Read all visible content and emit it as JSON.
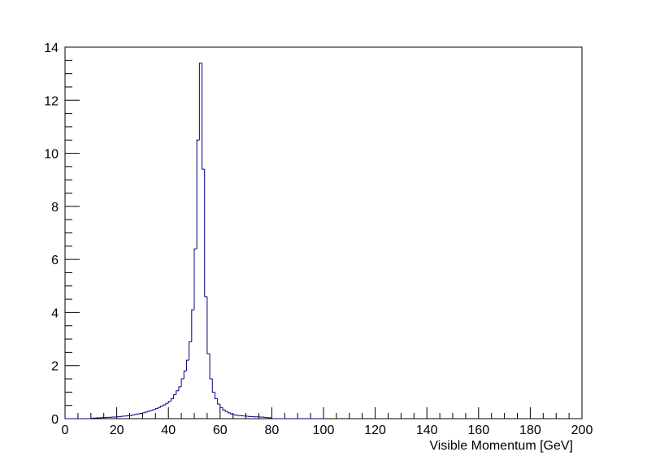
{
  "chart_data": {
    "type": "histogram",
    "xlabel": "Visible Momentum [GeV]",
    "bins": [
      0,
      1,
      2,
      3,
      4,
      5,
      6,
      7,
      8,
      9,
      10,
      11,
      12,
      13,
      14,
      15,
      16,
      17,
      18,
      19,
      20,
      21,
      22,
      23,
      24,
      25,
      26,
      27,
      28,
      29,
      30,
      31,
      32,
      33,
      34,
      35,
      36,
      37,
      38,
      39,
      40,
      41,
      42,
      43,
      44,
      45,
      46,
      47,
      48,
      49,
      50,
      51,
      52,
      53,
      54,
      55,
      56,
      57,
      58,
      59,
      60,
      61,
      62,
      63,
      64,
      65,
      66,
      67,
      68,
      69,
      70,
      71,
      72,
      73,
      74,
      75,
      76,
      77,
      78,
      79,
      80,
      81,
      82,
      83,
      84,
      85,
      86,
      87,
      88,
      89,
      90,
      91,
      92,
      93,
      94,
      95,
      96,
      97,
      98,
      99,
      100
    ],
    "counts": [
      0,
      0,
      0,
      0,
      0,
      0,
      0,
      0,
      0,
      0,
      0.02,
      0.02,
      0.03,
      0.03,
      0.04,
      0.04,
      0.05,
      0.05,
      0.06,
      0.06,
      0.07,
      0.08,
      0.09,
      0.1,
      0.11,
      0.12,
      0.14,
      0.16,
      0.18,
      0.2,
      0.22,
      0.25,
      0.28,
      0.31,
      0.34,
      0.38,
      0.42,
      0.47,
      0.52,
      0.58,
      0.65,
      0.75,
      0.9,
      1.05,
      1.2,
      1.5,
      1.8,
      2.2,
      2.9,
      4.1,
      6.4,
      10.5,
      13.4,
      9.4,
      4.6,
      2.45,
      1.5,
      1.0,
      0.75,
      0.55,
      0.42,
      0.33,
      0.27,
      0.22,
      0.18,
      0.15,
      0.13,
      0.12,
      0.11,
      0.1,
      0.09,
      0.08,
      0.08,
      0.07,
      0.07,
      0.06,
      0.06,
      0.05,
      0.04,
      0.03,
      0,
      0,
      0,
      0,
      0,
      0,
      0,
      0,
      0,
      0,
      0,
      0,
      0,
      0,
      0,
      0,
      0,
      0,
      0,
      0
    ],
    "color": "#000080",
    "xlim": [
      0,
      200
    ],
    "xticks": [
      0,
      20,
      40,
      60,
      80,
      100,
      120,
      140,
      160,
      180,
      200
    ],
    "ylim": [
      0,
      14
    ],
    "yticks": [
      0,
      2,
      4,
      6,
      8,
      10,
      12,
      14
    ]
  }
}
